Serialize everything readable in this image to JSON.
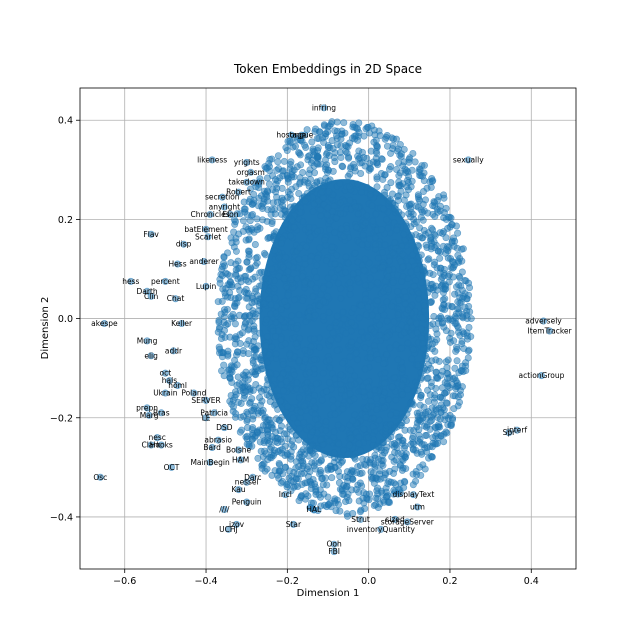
{
  "chart_data": {
    "type": "scatter",
    "title": "Token Embeddings in 2D Space",
    "xlabel": "Dimension 1",
    "ylabel": "Dimension 2",
    "xlim": [
      -0.71,
      0.51
    ],
    "ylim": [
      -0.505,
      0.465
    ],
    "xticks": [
      -0.6,
      -0.4,
      -0.2,
      0.0,
      0.2,
      0.4
    ],
    "xtick_labels": [
      "−0.6",
      "−0.4",
      "−0.2",
      "0.0",
      "0.2",
      "0.4"
    ],
    "yticks": [
      -0.4,
      -0.2,
      0.0,
      0.2,
      0.4
    ],
    "ytick_labels": [
      "−0.4",
      "−0.2",
      "0.0",
      "0.2",
      "0.4"
    ],
    "grid": true,
    "point_color": "#1f77b4",
    "point_alpha": 0.5,
    "cluster": {
      "center": [
        -0.06,
        0.0
      ],
      "radius": [
        0.29,
        0.38
      ]
    },
    "points": [
      {
        "label": "infring",
        "x": -0.11,
        "y": 0.425
      },
      {
        "label": "hostage",
        "x": -0.19,
        "y": 0.37
      },
      {
        "label": "ongue",
        "x": -0.165,
        "y": 0.37
      },
      {
        "label": "sexually",
        "x": 0.245,
        "y": 0.32
      },
      {
        "label": "likeness",
        "x": -0.385,
        "y": 0.32
      },
      {
        "label": "yrights",
        "x": -0.3,
        "y": 0.315
      },
      {
        "label": "orgasm",
        "x": -0.29,
        "y": 0.295
      },
      {
        "label": "takedown",
        "x": -0.3,
        "y": 0.275
      },
      {
        "label": "Robert",
        "x": -0.32,
        "y": 0.255
      },
      {
        "label": "secretion",
        "x": -0.36,
        "y": 0.245
      },
      {
        "label": "anyright",
        "x": -0.355,
        "y": 0.225
      },
      {
        "label": "Chronicles",
        "x": -0.39,
        "y": 0.21
      },
      {
        "label": "Elon",
        "x": -0.34,
        "y": 0.21
      },
      {
        "label": "batElement",
        "x": -0.4,
        "y": 0.18
      },
      {
        "label": "Scarlet",
        "x": -0.395,
        "y": 0.165
      },
      {
        "label": "Flav",
        "x": -0.535,
        "y": 0.17
      },
      {
        "label": "disp",
        "x": -0.455,
        "y": 0.15
      },
      {
        "label": "Hess",
        "x": -0.47,
        "y": 0.11
      },
      {
        "label": "anderer",
        "x": -0.405,
        "y": 0.115
      },
      {
        "label": "hess",
        "x": -0.585,
        "y": 0.075
      },
      {
        "label": "percent",
        "x": -0.5,
        "y": 0.075
      },
      {
        "label": "Lupin",
        "x": -0.4,
        "y": 0.065
      },
      {
        "label": "Darth",
        "x": -0.545,
        "y": 0.055
      },
      {
        "label": "Clin",
        "x": -0.535,
        "y": 0.045
      },
      {
        "label": "Chat",
        "x": -0.475,
        "y": 0.04
      },
      {
        "label": "akespe",
        "x": -0.65,
        "y": -0.01
      },
      {
        "label": "Keller",
        "x": -0.46,
        "y": -0.01
      },
      {
        "label": "Mung",
        "x": -0.545,
        "y": -0.045
      },
      {
        "label": "elig",
        "x": -0.535,
        "y": -0.075
      },
      {
        "label": "addr",
        "x": -0.48,
        "y": -0.065
      },
      {
        "label": "adversely",
        "x": 0.43,
        "y": -0.005
      },
      {
        "label": "ItemTracker",
        "x": 0.445,
        "y": -0.025
      },
      {
        "label": "oct",
        "x": -0.5,
        "y": -0.11
      },
      {
        "label": "hals",
        "x": -0.49,
        "y": -0.125
      },
      {
        "label": "homl",
        "x": -0.47,
        "y": -0.135
      },
      {
        "label": "Ukrain",
        "x": -0.5,
        "y": -0.15
      },
      {
        "label": "Poland",
        "x": -0.43,
        "y": -0.15
      },
      {
        "label": "actionGroup",
        "x": 0.425,
        "y": -0.115
      },
      {
        "label": "SERVER",
        "x": -0.4,
        "y": -0.165
      },
      {
        "label": "prepn",
        "x": -0.545,
        "y": -0.18
      },
      {
        "label": "Marg",
        "x": -0.54,
        "y": -0.195
      },
      {
        "label": "Bras",
        "x": -0.51,
        "y": -0.19
      },
      {
        "label": "Patricia",
        "x": -0.38,
        "y": -0.19
      },
      {
        "label": "LE",
        "x": -0.4,
        "y": -0.2
      },
      {
        "label": "DSD",
        "x": -0.355,
        "y": -0.22
      },
      {
        "label": "interf",
        "x": 0.365,
        "y": -0.225
      },
      {
        "label": "Spr",
        "x": 0.345,
        "y": -0.23
      },
      {
        "label": "nesc",
        "x": -0.52,
        "y": -0.24
      },
      {
        "label": "Clark",
        "x": -0.535,
        "y": -0.255
      },
      {
        "label": "Hooks",
        "x": -0.51,
        "y": -0.255
      },
      {
        "label": "abrasio",
        "x": -0.37,
        "y": -0.245
      },
      {
        "label": "Bard",
        "x": -0.385,
        "y": -0.26
      },
      {
        "label": "Bolshe",
        "x": -0.32,
        "y": -0.265
      },
      {
        "label": "HAM",
        "x": -0.315,
        "y": -0.285
      },
      {
        "label": "MainBegin",
        "x": -0.39,
        "y": -0.29
      },
      {
        "label": "OCT",
        "x": -0.485,
        "y": -0.3
      },
      {
        "label": "Osc",
        "x": -0.66,
        "y": -0.32
      },
      {
        "label": "Darc",
        "x": -0.285,
        "y": -0.32
      },
      {
        "label": "nessel",
        "x": -0.3,
        "y": -0.33
      },
      {
        "label": "Kau",
        "x": -0.32,
        "y": -0.345
      },
      {
        "label": "Incl",
        "x": -0.205,
        "y": -0.355
      },
      {
        "label": "displayText",
        "x": 0.11,
        "y": -0.355
      },
      {
        "label": "Penguin",
        "x": -0.3,
        "y": -0.37
      },
      {
        "label": "////",
        "x": -0.355,
        "y": -0.385
      },
      {
        "label": "HAL",
        "x": -0.135,
        "y": -0.385
      },
      {
        "label": "utm",
        "x": 0.12,
        "y": -0.38
      },
      {
        "label": "Strut",
        "x": -0.02,
        "y": -0.405
      },
      {
        "label": "sized",
        "x": 0.065,
        "y": -0.405
      },
      {
        "label": "storageServer",
        "x": 0.095,
        "y": -0.41
      },
      {
        "label": "izov",
        "x": -0.325,
        "y": -0.415
      },
      {
        "label": "Star",
        "x": -0.185,
        "y": -0.415
      },
      {
        "label": "UCHJ",
        "x": -0.345,
        "y": -0.425
      },
      {
        "label": "inventoryQuantity",
        "x": 0.03,
        "y": -0.425
      },
      {
        "label": "Ooh",
        "x": -0.085,
        "y": -0.455
      },
      {
        "label": "FBI",
        "x": -0.085,
        "y": -0.47
      }
    ]
  }
}
